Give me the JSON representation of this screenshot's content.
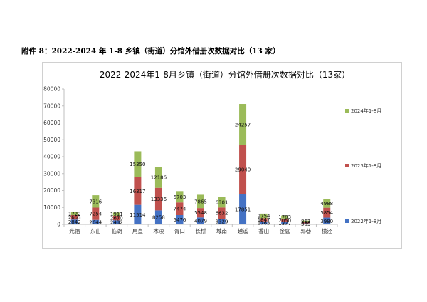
{
  "document": {
    "heading": "附件 8：2022-2024 年 1-8 乡镇（街道）分馆外借册次数据对比（13 家）"
  },
  "chart_data": {
    "type": "bar",
    "stacked": true,
    "title": "2022-2024年1-8月乡镇（街道）分馆外借册次数据对比（13家）",
    "xlabel": "",
    "ylabel": "",
    "ylim": [
      0,
      80000
    ],
    "yticks": [
      0,
      10000,
      20000,
      30000,
      40000,
      50000,
      60000,
      70000,
      80000
    ],
    "grid": false,
    "legend_position": "right",
    "categories": [
      "光福",
      "东山",
      "临湖",
      "甪直",
      "木渎",
      "胥口",
      "长桥",
      "城南",
      "越溪",
      "香山",
      "金庭",
      "郭巷",
      "横泾"
    ],
    "series": [
      {
        "name": "2022年1-8月",
        "color": "#4472c4",
        "values": [
          2842,
          2644,
          2432,
          11514,
          8258,
          5476,
          4079,
          3329,
          17851,
          1763,
          1377,
          583,
          3980
        ]
      },
      {
        "name": "2023年1-8月",
        "color": "#c0504d",
        "values": [
          2653,
          7254,
          2670,
          16317,
          13336,
          7474,
          5548,
          6632,
          29040,
          1847,
          2050,
          818,
          5854
        ]
      },
      {
        "name": "2024年1-8月",
        "color": "#9bbb59",
        "values": [
          1722,
          7316,
          1911,
          15350,
          12186,
          6703,
          7865,
          6301,
          24257,
          2754,
          1783,
          867,
          4988
        ]
      }
    ]
  }
}
